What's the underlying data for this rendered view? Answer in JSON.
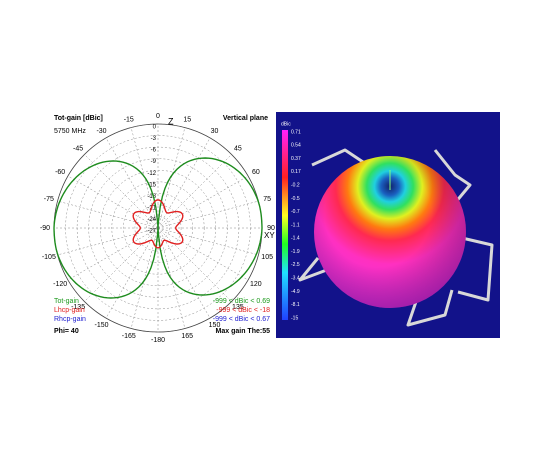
{
  "polar": {
    "title": "Tot-gain [dBic]",
    "plane": "Vertical plane",
    "frequency": "5750 MHz",
    "axis_z": "Z",
    "axis_xy": "XY",
    "angle_labels": [
      "0",
      "15",
      "30",
      "45",
      "60",
      "75",
      "90",
      "105",
      "120",
      "135",
      "150",
      "165",
      "-180",
      "-165",
      "-150",
      "-135",
      "-120",
      "-105",
      "-90",
      "-75",
      "-60",
      "-45",
      "-30",
      "-15"
    ],
    "ring_labels": [
      "0",
      "-3",
      "-6",
      "-9",
      "-12",
      "-15",
      "-18",
      "-21",
      "-24",
      "-27"
    ],
    "legend": [
      {
        "name": "Tot-gain",
        "range": "-999 < dBic < 0.69"
      },
      {
        "name": "Lhcp-gain",
        "range": "-999 < dBic < -18"
      },
      {
        "name": "Rhcp-gain",
        "range": "-999 < dBic < 0.67"
      }
    ],
    "phi": "Phi= 40",
    "max_gain": "Max gain The:55"
  },
  "view3d": {
    "unit": "dBic",
    "scale": [
      "0.71",
      "0.54",
      "0.37",
      "0.17",
      "-0.2",
      "-0.5",
      "-0.7",
      "-1.1",
      "-1.4",
      "-1.9",
      "-2.5",
      "-3.4",
      "-4.9",
      "-8.1",
      "-15"
    ]
  }
}
